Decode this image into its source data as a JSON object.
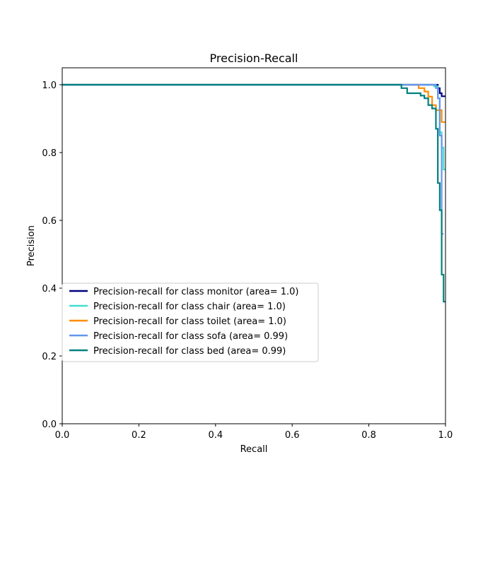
{
  "chart_data": {
    "type": "line",
    "title": "Precision-Recall",
    "xlabel": "Recall",
    "ylabel": "Precision",
    "xlim": [
      0.0,
      1.0
    ],
    "ylim": [
      0.0,
      1.05
    ],
    "xticks": [
      "0.0",
      "0.2",
      "0.4",
      "0.6",
      "0.8",
      "1.0"
    ],
    "yticks": [
      "0.0",
      "0.2",
      "0.4",
      "0.6",
      "0.8",
      "1.0"
    ],
    "grid": false,
    "legend_position": "center-left",
    "series": [
      {
        "name": "Precision-recall for class monitor (area= 1.0)",
        "color": "#000080",
        "x": [
          0.0,
          0.98,
          0.98,
          0.985,
          0.985,
          0.99,
          0.99,
          1.0
        ],
        "y": [
          1.0,
          1.0,
          0.99,
          0.99,
          0.975,
          0.975,
          0.966,
          0.966
        ]
      },
      {
        "name": "Precision-recall for class chair (area= 1.0)",
        "color": "#40e0d0",
        "x": [
          0.0,
          0.97,
          0.97,
          0.98,
          0.98,
          0.985,
          0.985,
          0.99,
          0.99,
          0.995,
          0.995,
          1.0
        ],
        "y": [
          1.0,
          1.0,
          0.995,
          0.995,
          0.96,
          0.96,
          0.86,
          0.86,
          0.815,
          0.815,
          0.75,
          0.75
        ]
      },
      {
        "name": "Precision-recall for class toilet (area= 1.0)",
        "color": "#ff8c00",
        "x": [
          0.0,
          0.93,
          0.93,
          0.945,
          0.945,
          0.955,
          0.955,
          0.965,
          0.965,
          0.975,
          0.975,
          0.99,
          0.99,
          1.0
        ],
        "y": [
          1.0,
          1.0,
          0.99,
          0.99,
          0.98,
          0.98,
          0.965,
          0.965,
          0.94,
          0.94,
          0.925,
          0.925,
          0.89,
          0.89
        ]
      },
      {
        "name": "Precision-recall for class sofa (area= 0.99)",
        "color": "#6495ed",
        "x": [
          0.0,
          0.975,
          0.975,
          0.98,
          0.98,
          0.985,
          0.985,
          0.99,
          0.99,
          0.995
        ],
        "y": [
          1.0,
          1.0,
          0.99,
          0.99,
          0.96,
          0.96,
          0.85,
          0.85,
          0.56,
          0.56
        ]
      },
      {
        "name": "Precision-recall for class bed (area= 0.99)",
        "color": "#008080",
        "x": [
          0.0,
          0.885,
          0.885,
          0.9,
          0.9,
          0.935,
          0.935,
          0.945,
          0.945,
          0.955,
          0.955,
          0.965,
          0.965,
          0.975,
          0.975,
          0.98,
          0.98,
          0.985,
          0.985,
          0.99,
          0.99,
          0.995,
          0.995,
          1.0
        ],
        "y": [
          1.0,
          1.0,
          0.99,
          0.99,
          0.975,
          0.975,
          0.968,
          0.968,
          0.96,
          0.96,
          0.94,
          0.94,
          0.93,
          0.93,
          0.87,
          0.87,
          0.71,
          0.71,
          0.63,
          0.63,
          0.44,
          0.44,
          0.36,
          0.36
        ]
      }
    ]
  }
}
